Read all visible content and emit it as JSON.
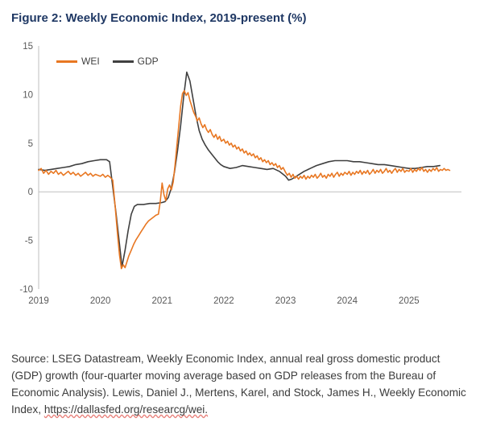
{
  "source": {
    "text": "Source: LSEG Datastream, Weekly Economic Index, annual real gross domestic product (GDP) growth (four-quarter moving average based on GDP releases from the Bureau of Economic Analysis). Lewis, Daniel J., Mertens, Karel, and Stock, James H., Weekly Economic Index, ",
    "url": "https://dallasfed.org/researcg/wei."
  },
  "chart_data": {
    "type": "line",
    "title": "Figure 2: Weekly Economic Index, 2019-present (%)",
    "xlabel": "",
    "ylabel": "",
    "xlim": [
      2019,
      2025.85
    ],
    "ylim": [
      -10,
      15
    ],
    "y_ticks": [
      15,
      10,
      5,
      0,
      -5,
      -10
    ],
    "x_ticks": [
      2019,
      2020,
      2021,
      2022,
      2023,
      2024,
      2025
    ],
    "grid": "zero-line-only",
    "legend_position": "top-left-inside",
    "axis_color": "#bfbfbf",
    "tick_color": "#595959",
    "title_color": "#1f3864",
    "series": [
      {
        "name": "WEI",
        "color": "#e87722",
        "x": [
          2019.0,
          2019.04,
          2019.08,
          2019.12,
          2019.16,
          2019.2,
          2019.24,
          2019.28,
          2019.32,
          2019.36,
          2019.4,
          2019.44,
          2019.48,
          2019.52,
          2019.56,
          2019.6,
          2019.64,
          2019.68,
          2019.72,
          2019.76,
          2019.8,
          2019.84,
          2019.88,
          2019.92,
          2019.96,
          2020.0,
          2020.04,
          2020.08,
          2020.12,
          2020.16,
          2020.2,
          2020.24,
          2020.28,
          2020.31,
          2020.34,
          2020.37,
          2020.4,
          2020.43,
          2020.46,
          2020.5,
          2020.54,
          2020.58,
          2020.62,
          2020.66,
          2020.7,
          2020.74,
          2020.78,
          2020.82,
          2020.86,
          2020.9,
          2020.94,
          2020.97,
          2021.0,
          2021.03,
          2021.06,
          2021.09,
          2021.12,
          2021.15,
          2021.18,
          2021.21,
          2021.24,
          2021.27,
          2021.3,
          2021.33,
          2021.36,
          2021.39,
          2021.42,
          2021.45,
          2021.48,
          2021.51,
          2021.54,
          2021.57,
          2021.6,
          2021.63,
          2021.66,
          2021.69,
          2021.72,
          2021.75,
          2021.78,
          2021.81,
          2021.84,
          2021.87,
          2021.9,
          2021.93,
          2021.96,
          2022.0,
          2022.03,
          2022.06,
          2022.09,
          2022.12,
          2022.15,
          2022.18,
          2022.21,
          2022.24,
          2022.27,
          2022.3,
          2022.33,
          2022.36,
          2022.39,
          2022.42,
          2022.45,
          2022.48,
          2022.51,
          2022.54,
          2022.57,
          2022.6,
          2022.63,
          2022.66,
          2022.69,
          2022.72,
          2022.75,
          2022.78,
          2022.81,
          2022.84,
          2022.87,
          2022.9,
          2022.93,
          2022.96,
          2023.0,
          2023.03,
          2023.06,
          2023.09,
          2023.12,
          2023.15,
          2023.18,
          2023.21,
          2023.24,
          2023.27,
          2023.3,
          2023.33,
          2023.36,
          2023.39,
          2023.42,
          2023.45,
          2023.48,
          2023.51,
          2023.54,
          2023.57,
          2023.6,
          2023.63,
          2023.66,
          2023.69,
          2023.72,
          2023.75,
          2023.78,
          2023.81,
          2023.84,
          2023.87,
          2023.9,
          2023.93,
          2023.96,
          2024.0,
          2024.03,
          2024.06,
          2024.09,
          2024.12,
          2024.15,
          2024.18,
          2024.21,
          2024.24,
          2024.27,
          2024.3,
          2024.33,
          2024.36,
          2024.39,
          2024.42,
          2024.45,
          2024.48,
          2024.51,
          2024.54,
          2024.57,
          2024.6,
          2024.63,
          2024.66,
          2024.69,
          2024.72,
          2024.75,
          2024.78,
          2024.81,
          2024.84,
          2024.87,
          2024.9,
          2024.93,
          2024.96,
          2025.0,
          2025.03,
          2025.06,
          2025.09,
          2025.12,
          2025.15,
          2025.18,
          2025.21,
          2025.24,
          2025.27,
          2025.3,
          2025.33,
          2025.36,
          2025.39,
          2025.42,
          2025.45,
          2025.48,
          2025.51,
          2025.54,
          2025.57,
          2025.6,
          2025.63,
          2025.66
        ],
        "y": [
          2.2,
          2.4,
          1.9,
          2.2,
          1.8,
          2.1,
          1.9,
          2.2,
          1.8,
          2.0,
          1.7,
          1.9,
          2.1,
          1.8,
          2.0,
          1.7,
          1.9,
          1.6,
          1.8,
          2.0,
          1.7,
          1.9,
          1.6,
          1.8,
          1.7,
          1.6,
          1.8,
          1.5,
          1.7,
          1.5,
          1.2,
          -1.5,
          -4.5,
          -6.5,
          -7.9,
          -7.5,
          -7.8,
          -7.2,
          -6.6,
          -6.0,
          -5.4,
          -4.9,
          -4.5,
          -4.1,
          -3.7,
          -3.3,
          -3.0,
          -2.8,
          -2.6,
          -2.4,
          -2.3,
          -1.0,
          0.9,
          -0.3,
          -0.9,
          0.3,
          0.7,
          0.2,
          1.0,
          2.8,
          4.8,
          6.8,
          8.8,
          10.1,
          10.4,
          9.9,
          10.2,
          9.4,
          8.8,
          8.2,
          7.8,
          7.3,
          7.6,
          7.0,
          6.6,
          6.9,
          6.4,
          6.1,
          6.4,
          5.9,
          5.6,
          5.9,
          5.4,
          5.7,
          5.2,
          5.4,
          5.0,
          5.2,
          4.8,
          5.0,
          4.6,
          4.8,
          4.4,
          4.6,
          4.2,
          4.4,
          4.0,
          4.2,
          3.8,
          4.0,
          3.7,
          3.9,
          3.5,
          3.7,
          3.3,
          3.5,
          3.1,
          3.3,
          3.0,
          3.2,
          2.8,
          3.0,
          2.7,
          2.9,
          2.5,
          2.7,
          2.3,
          2.5,
          2.0,
          1.7,
          1.9,
          1.5,
          1.8,
          1.4,
          1.6,
          1.3,
          1.6,
          1.4,
          1.7,
          1.3,
          1.6,
          1.4,
          1.7,
          1.5,
          1.8,
          1.4,
          1.6,
          1.9,
          1.5,
          1.7,
          1.4,
          1.8,
          1.6,
          1.9,
          1.5,
          1.8,
          2.0,
          1.6,
          1.9,
          1.7,
          2.0,
          1.8,
          2.1,
          1.7,
          2.0,
          1.8,
          2.1,
          1.9,
          2.2,
          1.8,
          2.1,
          1.9,
          2.2,
          1.8,
          2.0,
          2.3,
          1.9,
          2.2,
          2.0,
          2.3,
          1.9,
          2.1,
          2.4,
          2.0,
          2.2,
          1.9,
          2.2,
          2.4,
          2.0,
          2.3,
          2.1,
          2.4,
          2.0,
          2.2,
          2.1,
          2.4,
          2.0,
          2.3,
          2.1,
          2.4,
          2.2,
          2.5,
          2.1,
          2.3,
          2.0,
          2.3,
          2.1,
          2.4,
          2.2,
          2.5,
          2.1,
          2.3,
          2.2,
          2.4,
          2.2,
          2.3,
          2.2
        ]
      },
      {
        "name": "GDP",
        "color": "#404040",
        "x": [
          2019.0,
          2019.1,
          2019.2,
          2019.3,
          2019.4,
          2019.5,
          2019.6,
          2019.7,
          2019.8,
          2019.9,
          2020.0,
          2020.1,
          2020.15,
          2020.25,
          2020.35,
          2020.4,
          2020.45,
          2020.5,
          2020.55,
          2020.6,
          2020.7,
          2020.8,
          2020.9,
          2021.0,
          2021.05,
          2021.1,
          2021.15,
          2021.2,
          2021.25,
          2021.3,
          2021.35,
          2021.4,
          2021.45,
          2021.5,
          2021.55,
          2021.6,
          2021.65,
          2021.7,
          2021.75,
          2021.8,
          2021.85,
          2021.9,
          2021.95,
          2022.0,
          2022.1,
          2022.2,
          2022.3,
          2022.4,
          2022.5,
          2022.6,
          2022.7,
          2022.8,
          2022.9,
          2023.0,
          2023.05,
          2023.1,
          2023.2,
          2023.3,
          2023.4,
          2023.5,
          2023.6,
          2023.7,
          2023.8,
          2023.9,
          2024.0,
          2024.1,
          2024.2,
          2024.3,
          2024.4,
          2024.5,
          2024.6,
          2024.7,
          2024.8,
          2024.9,
          2025.0,
          2025.1,
          2025.2,
          2025.3,
          2025.4,
          2025.5
        ],
        "y": [
          2.3,
          2.2,
          2.3,
          2.4,
          2.5,
          2.6,
          2.8,
          2.9,
          3.1,
          3.2,
          3.3,
          3.3,
          3.1,
          -2.0,
          -7.7,
          -6.0,
          -4.0,
          -2.3,
          -1.5,
          -1.3,
          -1.3,
          -1.2,
          -1.2,
          -1.1,
          -1.0,
          -0.6,
          0.4,
          2.0,
          4.2,
          6.8,
          9.8,
          12.3,
          11.4,
          9.6,
          7.8,
          6.3,
          5.4,
          4.8,
          4.3,
          3.9,
          3.5,
          3.1,
          2.8,
          2.6,
          2.4,
          2.5,
          2.7,
          2.6,
          2.5,
          2.4,
          2.3,
          2.4,
          2.1,
          1.6,
          1.2,
          1.3,
          1.7,
          2.1,
          2.4,
          2.7,
          2.9,
          3.1,
          3.2,
          3.2,
          3.2,
          3.1,
          3.1,
          3.0,
          2.9,
          2.8,
          2.8,
          2.7,
          2.6,
          2.5,
          2.4,
          2.4,
          2.5,
          2.6,
          2.6,
          2.7
        ]
      }
    ]
  }
}
